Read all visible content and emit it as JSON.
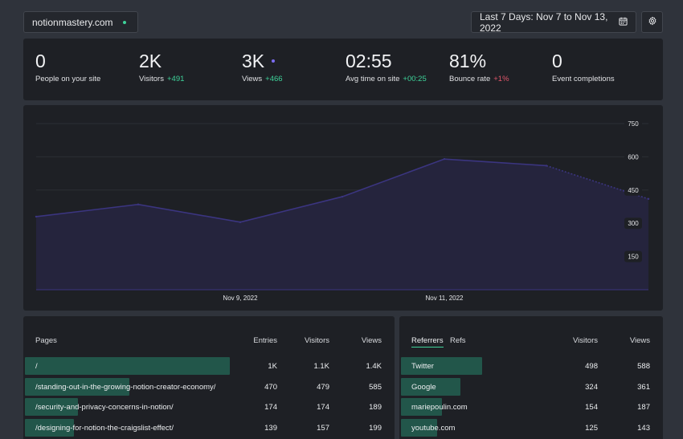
{
  "header": {
    "site": "notionmastery.com",
    "date_range": "Last 7 Days: Nov 7 to Nov 13, 2022",
    "icons": {
      "calendar": "calendar-icon",
      "settings": "gear-icon"
    }
  },
  "stats": [
    {
      "value": "0",
      "label": "People on your site",
      "delta": ""
    },
    {
      "value": "2K",
      "label": "Visitors",
      "delta": "+491"
    },
    {
      "value": "3K",
      "label": "Views",
      "delta": "+466"
    },
    {
      "value": "02:55",
      "label": "Avg time on site",
      "delta": "+00:25"
    },
    {
      "value": "81%",
      "label": "Bounce rate",
      "delta": "+1%"
    },
    {
      "value": "0",
      "label": "Event completions",
      "delta": ""
    }
  ],
  "colors": {
    "accent_green": "#3ed39a",
    "accent_red": "#e0566a",
    "chart_line": "#3b3580",
    "bar": "#22564a"
  },
  "chart_data": {
    "type": "area",
    "x": [
      "Nov 7, 2022",
      "Nov 8, 2022",
      "Nov 9, 2022",
      "Nov 10, 2022",
      "Nov 11, 2022",
      "Nov 12, 2022",
      "Nov 13, 2022"
    ],
    "x_tick_labels": [
      "Nov 9, 2022",
      "Nov 11, 2022"
    ],
    "values": [
      330,
      385,
      305,
      420,
      590,
      560,
      410
    ],
    "y_ticks": [
      150,
      300,
      450,
      600,
      750
    ],
    "ylim": [
      0,
      750
    ],
    "last_segment_dashed": true,
    "grid": true
  },
  "pages": {
    "title": "Pages",
    "columns": [
      "Entries",
      "Visitors",
      "Views"
    ],
    "rows": [
      {
        "path": "/",
        "entries": "1K",
        "visitors": "1.1K",
        "views": "1.4K",
        "share": 1.0
      },
      {
        "path": "/standing-out-in-the-growing-notion-creator-economy/",
        "entries": "470",
        "visitors": "479",
        "views": "585",
        "share": 0.51
      },
      {
        "path": "/security-and-privacy-concerns-in-notion/",
        "entries": "174",
        "visitors": "174",
        "views": "189",
        "share": 0.26
      },
      {
        "path": "/designing-for-notion-the-craigslist-effect/",
        "entries": "139",
        "visitors": "157",
        "views": "199",
        "share": 0.24
      }
    ]
  },
  "referrers": {
    "tabs": [
      "Referrers",
      "Refs"
    ],
    "columns": [
      "Visitors",
      "Views"
    ],
    "rows": [
      {
        "name": "Twitter",
        "visitors": "498",
        "views": "588",
        "share": 1.0
      },
      {
        "name": "Google",
        "visitors": "324",
        "views": "361",
        "share": 0.73
      },
      {
        "name": "mariepoulin.com",
        "visitors": "154",
        "views": "187",
        "share": 0.5
      },
      {
        "name": "youtube.com",
        "visitors": "125",
        "views": "143",
        "share": 0.45
      }
    ]
  }
}
